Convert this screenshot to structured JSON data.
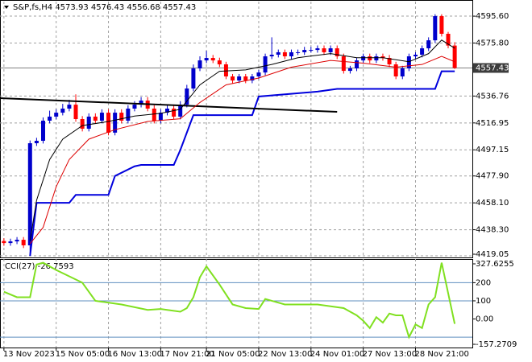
{
  "chart_data": [
    {
      "type": "candlestick",
      "title": "S&P,fs,H4  4573.93 4576.43 4556.68 4557.43",
      "xlim": [
        -0.6,
        71.7
      ],
      "xticks": [
        {
          "value": 0,
          "label": "13 Nov 2023"
        },
        {
          "value": 8,
          "label": "15 Nov 05:00"
        },
        {
          "value": 16,
          "label": "16 Nov 13:00"
        },
        {
          "value": 24,
          "label": "17 Nov 21:00"
        },
        {
          "value": 31,
          "label": "21 Nov 05:00"
        },
        {
          "value": 39,
          "label": "22 Nov 13:00"
        },
        {
          "value": 47,
          "label": "24 Nov 01:00"
        },
        {
          "value": 55,
          "label": "27 Nov 13:00"
        },
        {
          "value": 63,
          "label": "28 Nov 21:00"
        }
      ],
      "ylim": [
        4417.9,
        4606.3
      ],
      "yticks": [
        {
          "value": 4595.6,
          "label": "4595.60"
        },
        {
          "value": 4575.8,
          "label": "4575.80"
        },
        {
          "value": 4536.76,
          "label": "4536.76"
        },
        {
          "value": 4516.95,
          "label": "4516.95"
        },
        {
          "value": 4497.15,
          "label": "4497.15"
        },
        {
          "value": 4477.9,
          "label": "4477.90"
        },
        {
          "value": 4458.1,
          "label": "4458.10"
        },
        {
          "value": 4438.3,
          "label": "4438.30"
        },
        {
          "value": 4419.05,
          "label": "4419.05"
        }
      ],
      "grid": true,
      "last_price": 4557.43,
      "up_color": "#0000cc",
      "down_color": "#ff0000",
      "open": [
        4430.0,
        4428.5,
        4429.7,
        4430.9,
        4426.8,
        4502.0,
        4503.8,
        4518.6,
        4521.6,
        4524.5,
        4527.5,
        4530.4,
        4519.8,
        4512.7,
        4521.6,
        4518.6,
        4524.5,
        4509.8,
        4524.5,
        4518.6,
        4527.5,
        4530.4,
        4533.4,
        4527.5,
        4518.6,
        4524.5,
        4527.5,
        4521.6,
        4530.4,
        4542.3,
        4557.1,
        4563.0,
        4564.8,
        4563.0,
        4560.1,
        4551.2,
        4548.2,
        4551.2,
        4548.2,
        4551.2,
        4554.1,
        4566.0,
        4567.2,
        4569.0,
        4566.0,
        4569.0,
        4569.0,
        4570.7,
        4570.7,
        4571.9,
        4569.0,
        4571.9,
        4566.0,
        4555.3,
        4557.1,
        4563.0,
        4566.0,
        4563.0,
        4566.0,
        4564.8,
        4560.1,
        4551.2,
        4557.1,
        4566.0,
        4567.2,
        4571.9,
        4577.8,
        4595.6,
        4582.6,
        4573.93
      ],
      "high": [
        4432.0,
        4431.7,
        4432.9,
        4432.9,
        4504.0,
        4506.0,
        4521.0,
        4526.0,
        4527.0,
        4531.0,
        4534.0,
        4538.0,
        4522.0,
        4524.0,
        4524.0,
        4527.0,
        4527.0,
        4527.0,
        4527.0,
        4530.0,
        4533.0,
        4536.0,
        4536.0,
        4530.0,
        4527.0,
        4530.0,
        4530.0,
        4533.0,
        4545.0,
        4560.0,
        4566.0,
        4570.0,
        4567.0,
        4565.0,
        4562.0,
        4553.0,
        4553.0,
        4553.0,
        4553.0,
        4556.0,
        4568.0,
        4580.0,
        4571.0,
        4571.0,
        4571.0,
        4571.0,
        4573.0,
        4573.0,
        4574.0,
        4574.0,
        4574.0,
        4574.0,
        4568.0,
        4559.0,
        4565.0,
        4568.0,
        4568.0,
        4568.0,
        4568.0,
        4567.0,
        4562.0,
        4559.0,
        4568.0,
        4569.0,
        4574.0,
        4580.0,
        4597.0,
        4597.0,
        4584.0,
        4576.43
      ],
      "low": [
        4426.5,
        4426.5,
        4427.7,
        4424.8,
        4419.05,
        4500.0,
        4501.8,
        4516.6,
        4519.6,
        4522.5,
        4525.5,
        4517.8,
        4510.7,
        4510.7,
        4516.6,
        4516.6,
        4507.8,
        4507.8,
        4516.6,
        4516.6,
        4525.5,
        4528.4,
        4525.5,
        4516.6,
        4516.6,
        4522.5,
        4519.6,
        4519.6,
        4528.4,
        4540.3,
        4555.1,
        4561.0,
        4561.0,
        4558.1,
        4549.2,
        4546.2,
        4546.2,
        4546.2,
        4546.2,
        4549.2,
        4552.1,
        4564.0,
        4565.2,
        4564.0,
        4564.0,
        4567.0,
        4567.0,
        4568.7,
        4568.7,
        4567.0,
        4567.0,
        4564.0,
        4553.3,
        4553.3,
        4555.1,
        4561.0,
        4561.0,
        4561.0,
        4562.8,
        4558.1,
        4549.2,
        4549.2,
        4555.1,
        4564.0,
        4565.2,
        4569.9,
        4575.8,
        4580.6,
        4571.9,
        4556.68
      ],
      "close": [
        4428.5,
        4429.7,
        4430.9,
        4426.8,
        4502.0,
        4503.8,
        4518.6,
        4521.6,
        4524.5,
        4527.5,
        4530.4,
        4519.8,
        4512.7,
        4521.6,
        4518.6,
        4524.5,
        4509.8,
        4524.5,
        4518.6,
        4527.5,
        4530.4,
        4533.4,
        4527.5,
        4518.6,
        4524.5,
        4527.5,
        4521.6,
        4530.4,
        4542.3,
        4557.1,
        4563.0,
        4564.8,
        4563.0,
        4560.1,
        4551.2,
        4548.2,
        4551.2,
        4548.2,
        4551.2,
        4554.1,
        4566.0,
        4567.2,
        4569.0,
        4566.0,
        4569.0,
        4569.0,
        4570.7,
        4570.7,
        4571.9,
        4569.0,
        4571.9,
        4566.0,
        4555.3,
        4557.1,
        4563.0,
        4566.0,
        4563.0,
        4566.0,
        4564.8,
        4560.1,
        4551.2,
        4557.1,
        4566.0,
        4567.2,
        4571.9,
        4577.8,
        4595.6,
        4582.6,
        4573.93,
        4557.43
      ],
      "lines": [
        {
          "color": "#0000dd",
          "width": 2,
          "x": [
            4,
            5,
            10,
            11,
            16,
            17,
            20,
            21,
            26,
            27,
            29,
            38,
            39,
            48,
            51,
            66,
            67,
            69
          ],
          "values": [
            4419.0,
            4458.1,
            4458.1,
            4464.0,
            4464.0,
            4477.9,
            4485.0,
            4486.0,
            4486.0,
            4497.0,
            4522.7,
            4522.7,
            4536.4,
            4540.0,
            4542.0,
            4542.0,
            4555.0,
            4555.0
          ]
        },
        {
          "color": "#000000",
          "width": 2,
          "x": [
            -0.6,
            51
          ],
          "values": [
            4535.2,
            4525.1
          ]
        },
        {
          "color": "#000000",
          "width": 1,
          "x": [
            4,
            5,
            7,
            9,
            12,
            16,
            20,
            24,
            27,
            30,
            33,
            37,
            41,
            45,
            50,
            54,
            58,
            62,
            65,
            67,
            69
          ],
          "values": [
            4430,
            4460,
            4490,
            4505,
            4515,
            4518,
            4522,
            4524,
            4527,
            4545,
            4555,
            4556,
            4560,
            4565,
            4568,
            4565,
            4565,
            4562,
            4568,
            4578,
            4572
          ]
        },
        {
          "color": "#dd0000",
          "width": 1,
          "x": [
            4,
            6,
            8,
            10,
            13,
            17,
            22,
            27,
            30,
            34,
            39,
            44,
            50,
            55,
            60,
            64,
            67,
            69
          ],
          "values": [
            4428,
            4440,
            4470,
            4490,
            4505,
            4512,
            4518,
            4520,
            4532,
            4545,
            4550,
            4558,
            4563,
            4561,
            4558,
            4560,
            4566,
            4562
          ]
        }
      ]
    },
    {
      "type": "line",
      "title": "CCI(27) -26.7593",
      "ylim": [
        -157.27,
        330.4
      ],
      "yticks": [
        327.6255,
        200,
        100,
        {
          "value": 0,
          "label": "0.00"
        },
        -157.2709
      ],
      "levels": [
        200,
        100,
        -100
      ],
      "level_color": "#5f8fbf",
      "color": "#80e020",
      "x": [
        0,
        2,
        4,
        5,
        6,
        8,
        12,
        14,
        18,
        22,
        24,
        27,
        28,
        29,
        30,
        31,
        33,
        35,
        37,
        39,
        40,
        41,
        43,
        48,
        52,
        53,
        54,
        55,
        56,
        57,
        58,
        59,
        60,
        61,
        62,
        63,
        64,
        65,
        66,
        67,
        69
      ],
      "values": [
        150,
        120,
        120,
        300,
        310,
        270,
        200,
        100,
        80,
        50,
        55,
        40,
        60,
        120,
        230,
        290,
        190,
        80,
        60,
        55,
        110,
        100,
        80,
        80,
        60,
        40,
        20,
        -10,
        -50,
        10,
        -20,
        30,
        20,
        20,
        -100,
        -30,
        -50,
        80,
        120,
        310,
        -26.76
      ]
    }
  ]
}
